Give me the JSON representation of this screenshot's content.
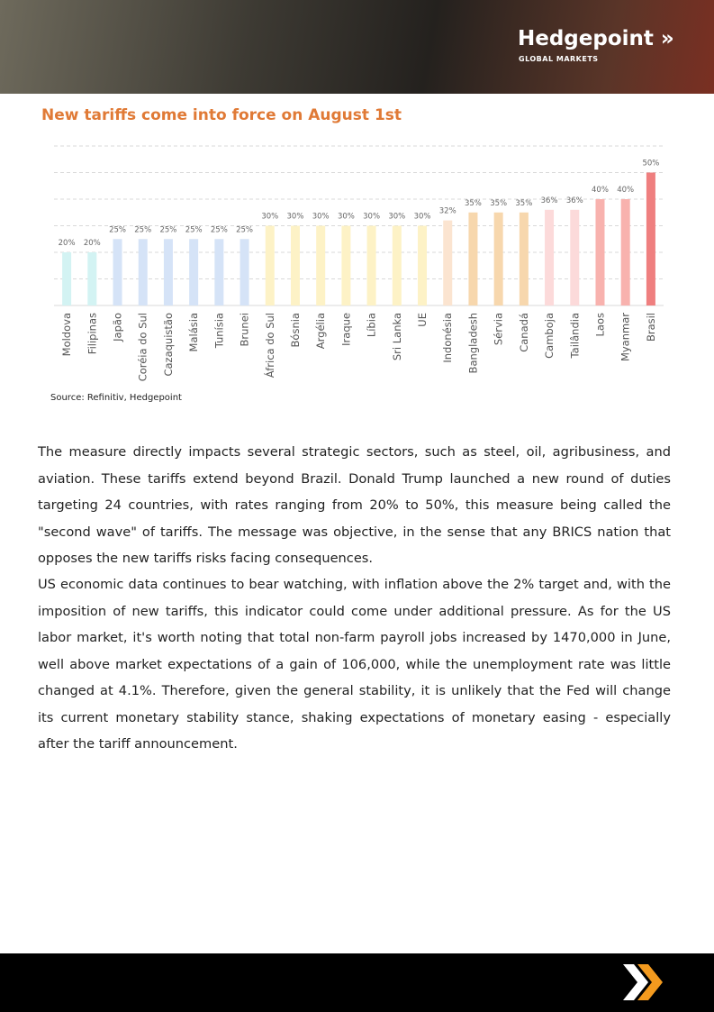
{
  "header": {
    "brand": "Hedgepoint",
    "tagline": "GLOBAL MARKETS"
  },
  "chart_data": {
    "type": "bar",
    "title": "New tariffs come into force on August 1st",
    "categories": [
      "Moldova",
      "Filipinas",
      "Japão",
      "Coréia do Sul",
      "Cazaquistão",
      "Malásia",
      "Tunísia",
      "Brunei",
      "África do Sul",
      "Bósnia",
      "Argélia",
      "Iraque",
      "Líbia",
      "Sri Lanka",
      "UE",
      "Indonésia",
      "Bangladesh",
      "Sérvia",
      "Canadá",
      "Camboja",
      "Tailândia",
      "Laos",
      "Myanmar",
      "Brasil"
    ],
    "values": [
      20,
      20,
      25,
      25,
      25,
      25,
      25,
      25,
      30,
      30,
      30,
      30,
      30,
      30,
      30,
      32,
      35,
      35,
      35,
      36,
      36,
      40,
      40,
      50
    ],
    "value_labels": [
      "20%",
      "20%",
      "25%",
      "25%",
      "25%",
      "25%",
      "25%",
      "25%",
      "30%",
      "30%",
      "30%",
      "30%",
      "30%",
      "30%",
      "30%",
      "32%",
      "35%",
      "35%",
      "35%",
      "36%",
      "36%",
      "40%",
      "40%",
      "50%"
    ],
    "colors": [
      "#d3f3f3",
      "#d3f3f3",
      "#d5e3f7",
      "#d5e3f7",
      "#d5e3f7",
      "#d5e3f7",
      "#d5e3f7",
      "#d5e3f7",
      "#fdf2c6",
      "#fdf2c6",
      "#fdf2c6",
      "#fdf2c6",
      "#fdf2c6",
      "#fdf2c6",
      "#fdf2c6",
      "#fbe4d0",
      "#f7d7ad",
      "#f7d7ad",
      "#f7d7ad",
      "#fcdada",
      "#fcdada",
      "#f8b2ae",
      "#f8b2ae",
      "#ef7f7f"
    ],
    "ylim": [
      0,
      60
    ],
    "yticks": [
      0,
      10,
      20,
      30,
      40,
      50,
      60
    ],
    "grid": true,
    "source": "Source: Refinitiv, Hedgepoint"
  },
  "body": {
    "paragraphs": [
      "The measure directly impacts several strategic sectors, such as steel, oil, agribusiness, and aviation. These tariffs extend beyond Brazil. Donald Trump launched a new round of duties targeting 24 countries, with rates ranging from 20% to 50%, this measure being called the \"second wave\" of tariffs. The message was objective, in the sense that any BRICS nation that opposes the new tariffs risks facing consequences.",
      "US economic data continues to bear watching, with inflation above the 2% target and, with the imposition of new tariffs, this indicator could come under additional pressure. As for the US labor market, it's worth noting that total non-farm payroll jobs increased by 1470,000 in June, well above market expectations of a gain of 106,000, while the unemployment rate was little changed at 4.1%. Therefore, given the general stability, it is unlikely that the Fed will change its current monetary stability stance, shaking expectations of monetary easing - especially after the tariff announcement."
    ]
  }
}
